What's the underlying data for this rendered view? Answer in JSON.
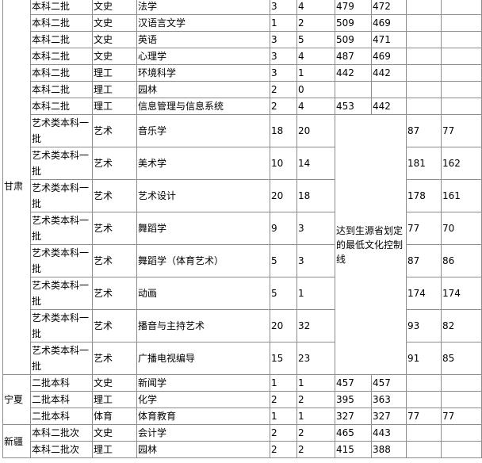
{
  "provinces": [
    "甘肃",
    "宁夏",
    "新疆"
  ],
  "note": "达到生源省划定的最低文化控制线",
  "rows": [
    [
      "本科二批",
      "文史",
      "法学",
      "3",
      "4",
      "479",
      "472",
      "",
      ""
    ],
    [
      "本科二批",
      "文史",
      "汉语言文学",
      "1",
      "2",
      "509",
      "469",
      "",
      ""
    ],
    [
      "本科二批",
      "文史",
      "英语",
      "3",
      "5",
      "509",
      "471",
      "",
      ""
    ],
    [
      "本科二批",
      "文史",
      "心理学",
      "3",
      "4",
      "487",
      "469",
      "",
      ""
    ],
    [
      "本科二批",
      "理工",
      "环境科学",
      "3",
      "1",
      "442",
      "442",
      "",
      ""
    ],
    [
      "本科二批",
      "理工",
      "园林",
      "2",
      "0",
      "",
      "",
      "",
      ""
    ],
    [
      "本科二批",
      "理工",
      "信息管理与信息系统",
      "2",
      "4",
      "453",
      "442",
      "",
      ""
    ],
    [
      "艺术类本科一批",
      "艺术",
      "音乐学",
      "18",
      "20",
      "",
      "",
      "87",
      "77"
    ],
    [
      "艺术类本科一批",
      "艺术",
      "美术学",
      "10",
      "14",
      "",
      "",
      "181",
      "162"
    ],
    [
      "艺术类本科一批",
      "艺术",
      "艺术设计",
      "20",
      "18",
      "",
      "",
      "178",
      "161"
    ],
    [
      "艺术类本科一批",
      "艺术",
      "舞蹈学",
      "9",
      "3",
      "",
      "",
      "77",
      "70"
    ],
    [
      "艺术类本科一批",
      "艺术",
      "舞蹈学（体育艺术）",
      "5",
      "3",
      "",
      "",
      "87",
      "86"
    ],
    [
      "艺术类本科一批",
      "艺术",
      "动画",
      "5",
      "1",
      "",
      "",
      "174",
      "174"
    ],
    [
      "艺术类本科一批",
      "艺术",
      "播音与主持艺术",
      "20",
      "32",
      "",
      "",
      "93",
      "82"
    ],
    [
      "艺术类本科一批",
      "艺术",
      "广播电视编导",
      "15",
      "23",
      "",
      "",
      "91",
      "85"
    ],
    [
      "二批本科",
      "文史",
      "新闻学",
      "1",
      "1",
      "457",
      "457",
      "",
      ""
    ],
    [
      "二批本科",
      "理工",
      "化学",
      "2",
      "2",
      "395",
      "363",
      "",
      ""
    ],
    [
      "二批本科",
      "体育",
      "体育教育",
      "1",
      "1",
      "327",
      "327",
      "77",
      "77"
    ],
    [
      "本科二批次",
      "文史",
      "会计学",
      "2",
      "2",
      "465",
      "443",
      "",
      ""
    ],
    [
      "本科二批次",
      "理工",
      "园林",
      "2",
      "2",
      "415",
      "388",
      "",
      ""
    ]
  ]
}
